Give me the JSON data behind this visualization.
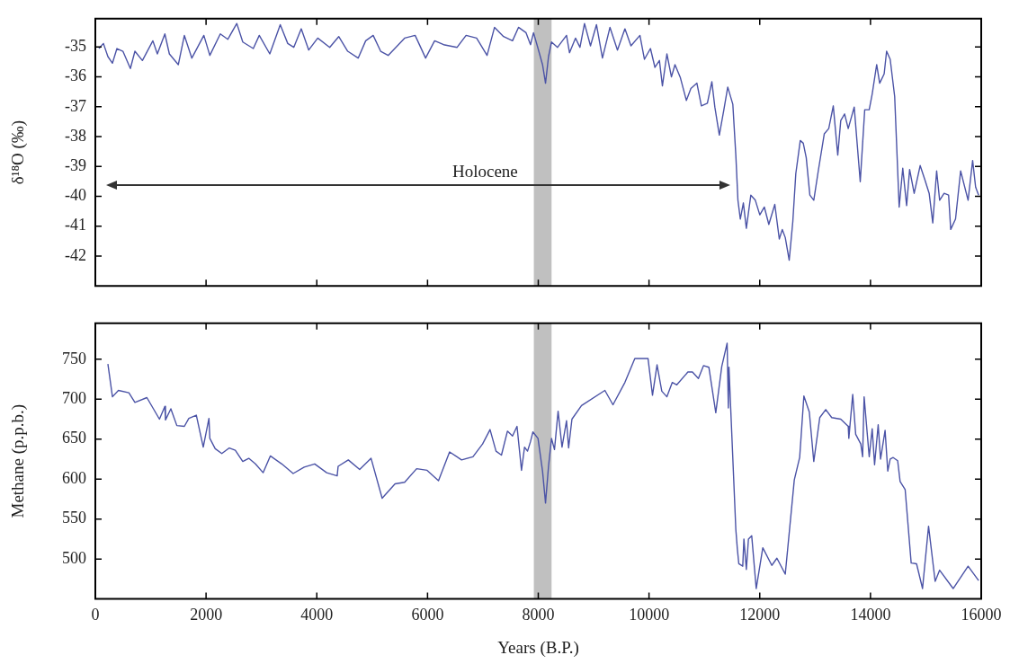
{
  "chart_data": [
    {
      "type": "line",
      "ylabel": "δ¹⁸O (‰)",
      "color": "#4b53a6",
      "xlim": [
        0,
        16000
      ],
      "ylim": [
        -43,
        -34.05
      ],
      "xticks": [
        0,
        2000,
        4000,
        6000,
        8000,
        10000,
        12000,
        14000,
        16000
      ],
      "yticks": [
        -42,
        -41,
        -40,
        -39,
        -38,
        -37,
        -36,
        -35
      ],
      "tick_labels": "y",
      "bands": [
        {
          "axis": "x",
          "from": 7920,
          "to": 8240,
          "color": "#c0c0c0"
        }
      ],
      "annotations": [
        "Holocene"
      ],
      "x": [
        65,
        146,
        227,
        309,
        390,
        498,
        633,
        715,
        850,
        1039,
        1120,
        1256,
        1337,
        1499,
        1608,
        1743,
        1960,
        2068,
        2257,
        2393,
        2555,
        2663,
        2853,
        2961,
        3151,
        3340,
        3475,
        3584,
        3719,
        3854,
        4017,
        4233,
        4396,
        4558,
        4747,
        4883,
        5018,
        5153,
        5289,
        5586,
        5776,
        5965,
        6128,
        6290,
        6534,
        6696,
        6886,
        7075,
        7210,
        7373,
        7535,
        7643,
        7779,
        7860,
        7914,
        7996,
        8077,
        8131,
        8185,
        8239,
        8348,
        8510,
        8564,
        8672,
        8753,
        8835,
        8943,
        9051,
        9159,
        9295,
        9430,
        9565,
        9674,
        9836,
        9917,
        10026,
        10107,
        10188,
        10242,
        10323,
        10405,
        10469,
        10567,
        10675,
        10756,
        10865,
        10946,
        11054,
        11135,
        11189,
        11270,
        11352,
        11422,
        11514,
        11568,
        11606,
        11649,
        11704,
        11758,
        11839,
        11920,
        12001,
        12083,
        12164,
        12272,
        12353,
        12407,
        12461,
        12532,
        12597,
        12651,
        12732,
        12786,
        12840,
        12905,
        12976,
        13057,
        13165,
        13246,
        13328,
        13409,
        13463,
        13533,
        13598,
        13706,
        13815,
        13896,
        13977,
        14031,
        14112,
        14166,
        14247,
        14291,
        14356,
        14437,
        14518,
        14583,
        14653,
        14707,
        14789,
        14897,
        14978,
        15060,
        15125,
        15195,
        15249,
        15330,
        15411,
        15449,
        15536,
        15628,
        15763,
        15845,
        15899,
        15953
      ],
      "values": [
        -35.05,
        -34.88,
        -35.32,
        -35.54,
        -35.05,
        -35.14,
        -35.72,
        -35.14,
        -35.45,
        -34.79,
        -35.23,
        -34.56,
        -35.23,
        -35.59,
        -34.61,
        -35.37,
        -34.61,
        -35.28,
        -34.56,
        -34.74,
        -34.21,
        -34.83,
        -35.05,
        -34.61,
        -35.23,
        -34.25,
        -34.88,
        -35.01,
        -34.39,
        -35.1,
        -34.7,
        -35.01,
        -34.65,
        -35.14,
        -35.37,
        -34.79,
        -34.61,
        -35.14,
        -35.28,
        -34.7,
        -34.61,
        -35.37,
        -34.79,
        -34.92,
        -35.01,
        -34.61,
        -34.7,
        -35.28,
        -34.34,
        -34.65,
        -34.79,
        -34.34,
        -34.52,
        -34.92,
        -34.52,
        -35.05,
        -35.59,
        -36.21,
        -35.32,
        -34.83,
        -35.01,
        -34.61,
        -35.19,
        -34.7,
        -35.01,
        -34.21,
        -34.96,
        -34.25,
        -35.37,
        -34.34,
        -35.1,
        -34.39,
        -34.96,
        -34.61,
        -35.41,
        -35.05,
        -35.68,
        -35.45,
        -36.3,
        -35.23,
        -36,
        -35.59,
        -36.03,
        -36.79,
        -36.39,
        -36.21,
        -36.97,
        -36.88,
        -36.16,
        -37.01,
        -37.95,
        -37.1,
        -36.34,
        -36.92,
        -38.62,
        -40.13,
        -40.76,
        -40.22,
        -41.07,
        -39.96,
        -40.13,
        -40.62,
        -40.36,
        -40.94,
        -40.27,
        -41.43,
        -41.11,
        -41.38,
        -42.14,
        -40.85,
        -39.24,
        -38.13,
        -38.22,
        -38.71,
        -39.96,
        -40.13,
        -39.15,
        -37.91,
        -37.73,
        -36.97,
        -38.62,
        -37.46,
        -37.24,
        -37.73,
        -37.01,
        -39.51,
        -37.1,
        -37.1,
        -36.57,
        -35.59,
        -36.21,
        -35.9,
        -35.14,
        -35.41,
        -36.66,
        -40.36,
        -39.06,
        -40.31,
        -39.1,
        -39.9,
        -38.97,
        -39.42,
        -39.9,
        -40.89,
        -39.15,
        -40.13,
        -39.9,
        -39.96,
        -41.11,
        -40.76,
        -39.15,
        -40.13,
        -38.8,
        -39.69,
        -39.96
      ]
    },
    {
      "type": "line",
      "xlabel": "Years (B.P.)",
      "ylabel": "Methane (p.p.b.)",
      "color": "#4b53a6",
      "xlim": [
        0,
        16000
      ],
      "ylim": [
        450,
        795
      ],
      "xticks": [
        0,
        2000,
        4000,
        6000,
        8000,
        10000,
        12000,
        14000,
        16000
      ],
      "yticks": [
        500,
        550,
        600,
        650,
        700,
        750
      ],
      "bands": [
        {
          "axis": "x",
          "from": 7920,
          "to": 8240,
          "color": "#c0c0c0"
        }
      ],
      "x": [
        227,
        309,
        417,
        606,
        715,
        931,
        1158,
        1256,
        1267,
        1364,
        1472,
        1608,
        1689,
        1824,
        1949,
        2052,
        2068,
        2165,
        2284,
        2420,
        2528,
        2663,
        2771,
        2891,
        3031,
        3161,
        3367,
        3573,
        3773,
        3962,
        4179,
        4368,
        4385,
        4569,
        4774,
        4980,
        5180,
        5413,
        5586,
        5803,
        5992,
        6198,
        6398,
        6615,
        6820,
        6994,
        7129,
        7237,
        7335,
        7443,
        7535,
        7616,
        7697,
        7752,
        7806,
        7860,
        7903,
        7995,
        8077,
        8131,
        8185,
        8239,
        8293,
        8358,
        8429,
        8510,
        8548,
        8608,
        8781,
        9203,
        9349,
        9565,
        9744,
        9982,
        10063,
        10145,
        10231,
        10323,
        10421,
        10502,
        10702,
        10784,
        10892,
        10984,
        11081,
        11206,
        11314,
        11411,
        11433,
        11444,
        11568,
        11595,
        11622,
        11693,
        11714,
        11758,
        11796,
        11855,
        11936,
        12055,
        12218,
        12310,
        12461,
        12624,
        12721,
        12797,
        12895,
        12976,
        13084,
        13192,
        13300,
        13463,
        13598,
        13609,
        13679,
        13733,
        13825,
        13858,
        13885,
        13977,
        14031,
        14074,
        14139,
        14182,
        14264,
        14312,
        14356,
        14410,
        14491,
        14535,
        14626,
        14735,
        14832,
        14940,
        15049,
        15168,
        15249,
        15493,
        15763,
        15953
      ],
      "values": [
        744,
        703,
        711,
        708,
        696,
        702,
        675,
        691,
        674,
        688,
        667,
        666,
        676,
        680,
        640,
        676,
        651,
        638,
        632,
        639,
        636,
        622,
        626,
        619,
        608,
        629,
        619,
        607,
        615,
        619,
        608,
        604,
        616,
        624,
        612,
        626,
        576,
        594,
        596,
        613,
        611,
        598,
        634,
        624,
        628,
        644,
        662,
        635,
        630,
        660,
        654,
        666,
        611,
        640,
        635,
        647,
        659,
        651,
        610,
        570,
        616,
        651,
        637,
        685,
        640,
        673,
        639,
        675,
        692,
        711,
        693,
        721,
        751,
        751,
        705,
        743,
        710,
        703,
        721,
        718,
        734,
        734,
        726,
        742,
        740,
        683,
        741,
        770,
        689,
        740,
        537,
        513,
        494,
        491,
        525,
        487,
        525,
        529,
        463,
        514,
        492,
        501,
        481,
        599,
        627,
        704,
        684,
        622,
        677,
        687,
        677,
        675,
        666,
        651,
        706,
        656,
        644,
        628,
        703,
        628,
        663,
        618,
        668,
        625,
        661,
        610,
        625,
        627,
        623,
        597,
        587,
        495,
        494,
        463,
        541,
        472,
        486,
        463,
        491,
        473
      ]
    }
  ]
}
